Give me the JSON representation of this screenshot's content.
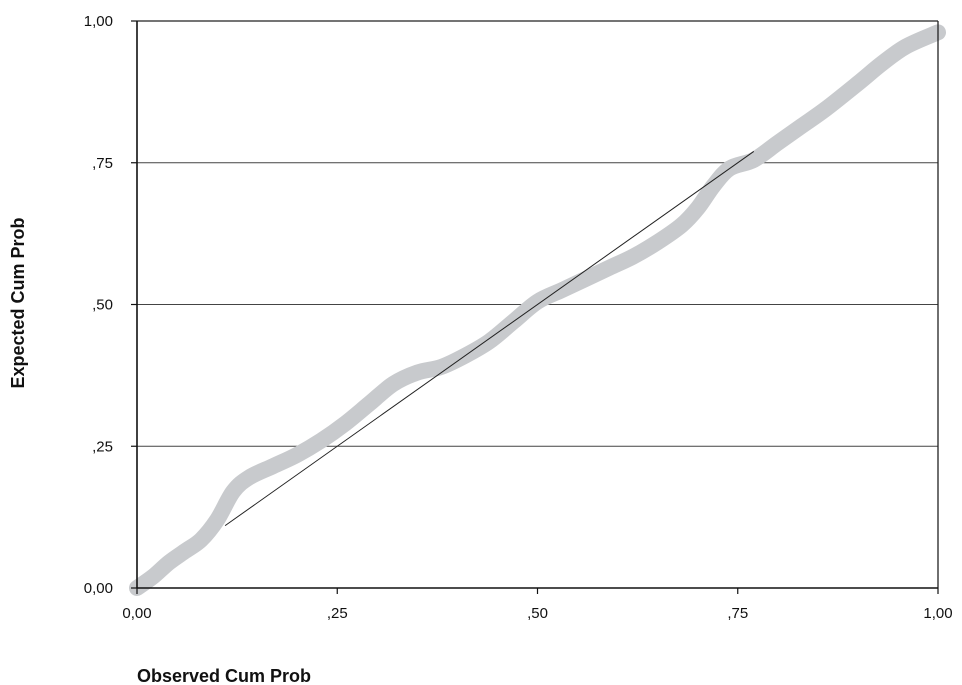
{
  "chart_data": {
    "type": "line",
    "title": "",
    "xlabel": "Observed Cum Prob",
    "ylabel": "Expected Cum Prob",
    "xlim": [
      0,
      1
    ],
    "ylim": [
      0,
      1
    ],
    "grid": "horizontal",
    "x_ticks": [
      {
        "value": 0,
        "label": "0,00"
      },
      {
        "value": 0.25,
        "label": ",25"
      },
      {
        "value": 0.5,
        "label": ",50"
      },
      {
        "value": 0.75,
        "label": ",75"
      },
      {
        "value": 1,
        "label": "1,00"
      }
    ],
    "y_ticks": [
      {
        "value": 0,
        "label": "0,00"
      },
      {
        "value": 0.25,
        "label": ",25"
      },
      {
        "value": 0.5,
        "label": ",50"
      },
      {
        "value": 0.75,
        "label": ",75"
      },
      {
        "value": 1,
        "label": "1,00"
      }
    ],
    "series": [
      {
        "role": "observed",
        "color": "#c8cacd",
        "x": [
          0.0,
          0.02,
          0.04,
          0.06,
          0.08,
          0.1,
          0.12,
          0.14,
          0.17,
          0.2,
          0.23,
          0.26,
          0.29,
          0.32,
          0.35,
          0.38,
          0.41,
          0.44,
          0.47,
          0.5,
          0.53,
          0.56,
          0.59,
          0.62,
          0.65,
          0.68,
          0.7,
          0.72,
          0.74,
          0.77,
          0.8,
          0.83,
          0.86,
          0.9,
          0.93,
          0.96,
          1.0
        ],
        "values": [
          0.0,
          0.02,
          0.045,
          0.065,
          0.085,
          0.12,
          0.17,
          0.195,
          0.215,
          0.235,
          0.26,
          0.29,
          0.325,
          0.36,
          0.38,
          0.39,
          0.41,
          0.435,
          0.47,
          0.505,
          0.525,
          0.545,
          0.565,
          0.585,
          0.61,
          0.64,
          0.67,
          0.71,
          0.74,
          0.755,
          0.785,
          0.815,
          0.845,
          0.89,
          0.925,
          0.955,
          0.98
        ]
      },
      {
        "role": "reference",
        "color": "#222222",
        "x": [
          0.11,
          0.77
        ],
        "values": [
          0.11,
          0.77
        ]
      }
    ]
  }
}
